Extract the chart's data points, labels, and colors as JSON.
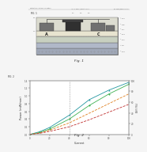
{
  "background_color": "#f5f5f5",
  "header_left": "Patent Application Publication",
  "header_mid": "Jan. 2, 2014 / Sheet 1 of 3",
  "header_right": "US 2014/0000000 A1",
  "fig1_label": "Fig. 1",
  "fig2_label": "Fig. 2",
  "fig1": {
    "outer_color": "#d8d8d8",
    "layer_top_color": "#e8e4d0",
    "layer_mid_color": "#c8d0c0",
    "layer_bot_color": "#b0b8c8",
    "substrate_color": "#a0a8b8",
    "gate_color": "#303030",
    "contact_color": "#707070",
    "label_A": "A",
    "label_C": "C",
    "border_color": "#555555",
    "annotation_color": "#555555",
    "line_color": "#888888"
  },
  "fig2": {
    "xlabel": "Current",
    "ylabel_left": "Power (mW/mm)",
    "ylabel_right": "Eff (%)",
    "xlim": [
      0,
      100
    ],
    "ylim_left": [
      0,
      1.4
    ],
    "ylim_right": [
      0,
      100
    ],
    "xticks": [
      0,
      20,
      40,
      60,
      80,
      100
    ],
    "yticks_left": [
      0.0,
      0.2,
      0.4,
      0.6,
      0.8,
      1.0,
      1.2,
      1.4
    ],
    "yticks_right": [
      0,
      20,
      40,
      60,
      80,
      100
    ],
    "x_data": [
      0,
      10,
      20,
      40,
      60,
      80,
      100
    ],
    "lines": [
      {
        "y": [
          0,
          0.07,
          0.18,
          0.5,
          0.9,
          1.15,
          1.35
        ],
        "color": "#2196a0",
        "style": "-",
        "marker": "^"
      },
      {
        "y": [
          0,
          0.05,
          0.14,
          0.4,
          0.75,
          1.05,
          1.3
        ],
        "color": "#3cb050",
        "style": "-",
        "marker": "o"
      },
      {
        "y": [
          0,
          0.04,
          0.11,
          0.3,
          0.55,
          0.8,
          1.05
        ],
        "color": "#e08020",
        "style": "--",
        "marker": ""
      },
      {
        "y": [
          0,
          0.03,
          0.08,
          0.2,
          0.38,
          0.58,
          0.78
        ],
        "color": "#c03030",
        "style": "--",
        "marker": ""
      }
    ],
    "dashed_vline_x": 40,
    "bg_color": "#ffffff",
    "spine_color": "#888888",
    "tick_color": "#555555",
    "label_fontsize": 2.5,
    "tick_fontsize": 2.0
  }
}
